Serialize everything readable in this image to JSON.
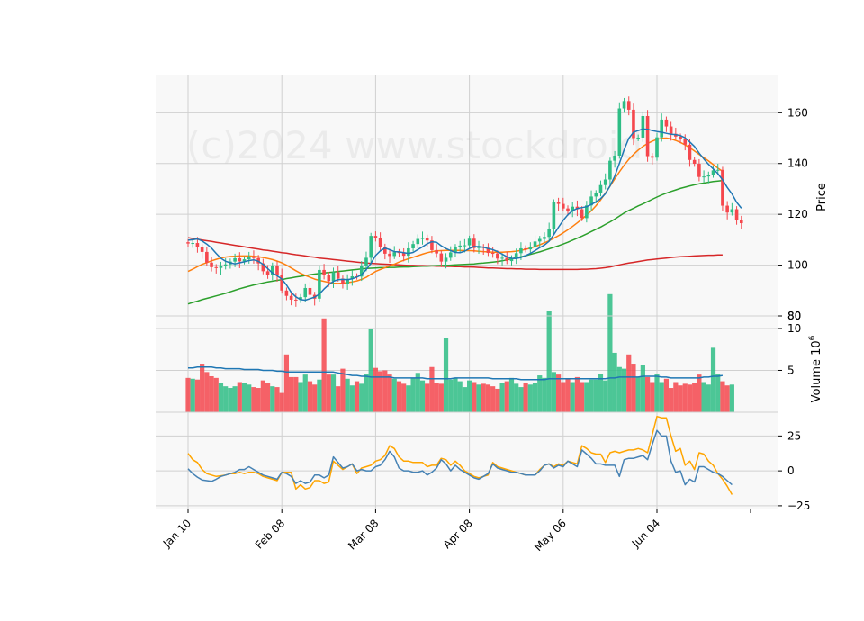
{
  "chart_data": {
    "type": "candlestick",
    "watermark": "(c)2024 www.stockdroid",
    "colors": {
      "up": "#2ebd85",
      "down": "#f5474d",
      "panel_bg": "#f8f8f8",
      "grid": "#d0d0d0",
      "ma_short": "#1f77b4",
      "ma_mid": "#ff7f0e",
      "ma_long": "#2ca02c",
      "ma_longest": "#d62728",
      "osc_fast": "#4682b4",
      "osc_slow": "#ffa500"
    },
    "x_tick_labels": [
      "Jan 10",
      "Feb 08",
      "Mar 08",
      "Apr 08",
      "May 06",
      "Jun 04"
    ],
    "x_tick_days": [
      0,
      20,
      40,
      60,
      80,
      100
    ],
    "price_panel": {
      "ylabel": "Price",
      "yticks": [
        80,
        100,
        120,
        140,
        160
      ],
      "ylim": [
        80,
        175
      ],
      "close": [
        108.5,
        108.7,
        107.1,
        105.2,
        101.0,
        99.2,
        98.9,
        99.5,
        100.3,
        101.4,
        102.7,
        101.5,
        102.3,
        103.4,
        102.8,
        100.7,
        97.6,
        96.3,
        99.8,
        96.2,
        90.0,
        87.9,
        86.4,
        86.3,
        87.4,
        91.0,
        88.3,
        86.8,
        98.1,
        96.1,
        93.7,
        97.2,
        94.7,
        92.5,
        94.6,
        95.6,
        95.5,
        99.8,
        102.9,
        111.5,
        110.5,
        107.2,
        104.5,
        103.6,
        105.1,
        104.8,
        103.7,
        106.6,
        108.3,
        110.3,
        110.8,
        109.7,
        105.9,
        104.6,
        101.4,
        102.9,
        105.0,
        107.1,
        107.7,
        107.8,
        110.4,
        106.7,
        107.1,
        106.8,
        104.8,
        104.6,
        102.6,
        102.9,
        101.6,
        102.7,
        104.7,
        106.6,
        106.2,
        107.2,
        109.3,
        110.3,
        111.1,
        114.3,
        124.7,
        124.1,
        122.3,
        121.1,
        123.0,
        122.0,
        118.5,
        123.5,
        127.0,
        128.3,
        131.5,
        133.7,
        141.1,
        143.1,
        161.7,
        164.6,
        161.2,
        150.0,
        150.2,
        158.7,
        142.9,
        142.3,
        150.3,
        157.3,
        154.6,
        151.7,
        150.6,
        149.7,
        147.4,
        141.4,
        139.9,
        134.7,
        134.9,
        135.6,
        137.3,
        137.5,
        123.4,
        120.7,
        122.0,
        117.6,
        116.5
      ],
      "open": [
        109.0,
        108.5,
        108.7,
        107.1,
        105.2,
        101.0,
        99.2,
        98.9,
        99.5,
        100.3,
        101.4,
        102.7,
        101.5,
        102.3,
        103.4,
        102.8,
        100.7,
        97.6,
        96.3,
        99.8,
        96.2,
        90.0,
        87.9,
        86.4,
        86.3,
        87.4,
        91.0,
        88.3,
        86.8,
        98.1,
        96.1,
        93.7,
        97.2,
        94.7,
        92.5,
        94.6,
        95.6,
        95.5,
        99.8,
        102.9,
        111.5,
        110.5,
        107.2,
        104.5,
        103.6,
        105.1,
        104.8,
        103.7,
        106.6,
        108.3,
        110.3,
        110.8,
        109.7,
        105.9,
        104.6,
        101.4,
        102.9,
        105.0,
        107.1,
        107.7,
        107.8,
        110.4,
        106.7,
        107.1,
        106.8,
        104.8,
        104.6,
        102.6,
        102.9,
        101.6,
        102.7,
        104.7,
        106.6,
        106.2,
        107.2,
        109.3,
        110.3,
        111.1,
        114.3,
        124.7,
        124.1,
        122.3,
        121.1,
        123.0,
        122.0,
        118.5,
        123.5,
        127.0,
        128.3,
        131.5,
        133.7,
        141.1,
        143.1,
        161.7,
        164.6,
        161.2,
        150.0,
        150.2,
        158.7,
        142.9,
        142.3,
        150.3,
        157.3,
        154.6,
        151.7,
        150.6,
        149.7,
        147.4,
        141.4,
        139.9,
        134.7,
        134.9,
        135.6,
        137.3,
        137.5,
        123.4,
        120.7,
        122.0,
        117.6
      ],
      "ma_short": [
        109.8,
        110.0,
        110.3,
        109.5,
        108.3,
        106.7,
        104.6,
        102.7,
        101.5,
        100.9,
        100.5,
        100.9,
        101.3,
        101.8,
        102.1,
        101.5,
        100.3,
        98.6,
        96.9,
        95.8,
        94.5,
        92.2,
        89.3,
        87.5,
        86.4,
        86.2,
        86.8,
        87.4,
        88.6,
        90.6,
        92.3,
        93.6,
        94.3,
        94.4,
        94.3,
        94.6,
        95.3,
        96.2,
        98.3,
        100.7,
        103.8,
        105.6,
        106.7,
        106.1,
        105.3,
        105.2,
        104.9,
        104.6,
        105.0,
        106.1,
        107.2,
        108.4,
        109.2,
        109.0,
        107.6,
        106.5,
        105.7,
        105.0,
        104.9,
        105.5,
        106.5,
        107.3,
        107.3,
        107.0,
        106.5,
        106.1,
        105.3,
        104.3,
        103.3,
        102.7,
        102.6,
        103.0,
        103.8,
        104.6,
        105.7,
        106.9,
        107.9,
        109.4,
        112.0,
        114.9,
        117.6,
        119.8,
        121.4,
        122.3,
        122.6,
        123.0,
        123.9,
        124.9,
        126.2,
        128.1,
        131.2,
        135.0,
        140.1,
        145.4,
        149.9,
        152.3,
        153.0,
        153.6,
        153.5,
        153.0,
        152.6,
        152.3,
        151.9,
        151.5,
        151.4,
        151.0,
        150.1,
        148.5,
        146.7,
        144.1,
        141.8,
        139.7,
        137.9,
        136.0,
        133.6,
        130.6,
        128.0,
        124.7,
        122.4
      ],
      "ma_mid": [
        97.5,
        98.4,
        99.4,
        100.3,
        101.0,
        101.7,
        102.3,
        102.8,
        103.2,
        103.4,
        103.5,
        103.6,
        103.6,
        103.6,
        103.5,
        103.3,
        103.0,
        102.6,
        102.2,
        101.6,
        100.9,
        100.0,
        98.9,
        97.8,
        96.8,
        95.9,
        95.2,
        94.5,
        94.0,
        93.6,
        93.2,
        92.9,
        92.8,
        92.9,
        93.1,
        93.4,
        93.8,
        94.4,
        95.2,
        96.4,
        97.5,
        98.3,
        99.0,
        99.7,
        100.4,
        101.2,
        101.9,
        102.5,
        103.1,
        103.7,
        104.3,
        104.9,
        105.3,
        105.6,
        105.7,
        105.8,
        105.8,
        105.8,
        105.8,
        105.7,
        105.7,
        105.6,
        105.4,
        105.3,
        105.2,
        105.1,
        105.1,
        105.1,
        105.2,
        105.3,
        105.5,
        105.8,
        106.2,
        106.7,
        107.3,
        108.0,
        108.8,
        109.6,
        110.6,
        111.6,
        112.7,
        113.9,
        115.2,
        116.6,
        118.1,
        119.7,
        121.4,
        123.4,
        125.7,
        128.3,
        131.1,
        133.9,
        136.7,
        139.3,
        141.6,
        143.6,
        145.3,
        146.7,
        147.9,
        148.8,
        149.5,
        149.9,
        150.0,
        149.7,
        149.1,
        148.3,
        147.3,
        146.2,
        144.9,
        143.6,
        142.3,
        141.0,
        139.6,
        138.2,
        136.9
      ],
      "ma_long": [
        84.7,
        85.3,
        85.8,
        86.4,
        86.9,
        87.4,
        87.9,
        88.4,
        88.9,
        89.5,
        90.1,
        90.7,
        91.2,
        91.7,
        92.2,
        92.6,
        93.0,
        93.4,
        93.7,
        94.0,
        94.3,
        94.7,
        95.0,
        95.3,
        95.6,
        95.9,
        96.2,
        96.5,
        96.7,
        96.9,
        97.1,
        97.3,
        97.5,
        97.7,
        97.9,
        98.1,
        98.3,
        98.5,
        98.7,
        98.8,
        98.9,
        99.0,
        99.0,
        99.1,
        99.1,
        99.2,
        99.3,
        99.3,
        99.4,
        99.5,
        99.6,
        99.6,
        99.7,
        99.8,
        99.9,
        99.9,
        100.0,
        100.1,
        100.2,
        100.3,
        100.4,
        100.5,
        100.7,
        100.8,
        101.0,
        101.2,
        101.4,
        101.7,
        102.1,
        102.5,
        102.9,
        103.3,
        103.7,
        104.2,
        104.7,
        105.2,
        105.8,
        106.4,
        107.0,
        107.6,
        108.3,
        109.0,
        109.8,
        110.6,
        111.4,
        112.3,
        113.2,
        114.1,
        115.0,
        116.0,
        117.0,
        118.1,
        119.3,
        120.5,
        121.5,
        122.4,
        123.3,
        124.1,
        125.0,
        125.9,
        126.8,
        127.6,
        128.3,
        129.0,
        129.6,
        130.2,
        130.7,
        131.2,
        131.6,
        132.0,
        132.3,
        132.6,
        132.9,
        133.1,
        133.3
      ],
      "ma_longest": [
        110.8,
        110.5,
        110.2,
        109.9,
        109.6,
        109.3,
        109.0,
        108.7,
        108.4,
        108.1,
        107.8,
        107.5,
        107.2,
        106.9,
        106.6,
        106.3,
        106.0,
        105.8,
        105.5,
        105.2,
        104.9,
        104.7,
        104.4,
        104.1,
        103.9,
        103.6,
        103.3,
        103.1,
        102.8,
        102.6,
        102.4,
        102.2,
        102.0,
        101.8,
        101.6,
        101.4,
        101.2,
        101.0,
        100.8,
        100.7,
        100.6,
        100.5,
        100.4,
        100.3,
        100.2,
        100.1,
        100.0,
        99.9,
        99.9,
        99.8,
        99.8,
        99.7,
        99.7,
        99.6,
        99.6,
        99.5,
        99.5,
        99.4,
        99.4,
        99.3,
        99.3,
        99.2,
        99.1,
        99.0,
        98.9,
        98.9,
        98.8,
        98.7,
        98.6,
        98.6,
        98.5,
        98.5,
        98.4,
        98.4,
        98.4,
        98.3,
        98.3,
        98.3,
        98.3,
        98.3,
        98.3,
        98.3,
        98.3,
        98.3,
        98.4,
        98.4,
        98.5,
        98.6,
        98.8,
        99.0,
        99.3,
        99.7,
        100.1,
        100.5,
        100.8,
        101.1,
        101.4,
        101.7,
        102.0,
        102.2,
        102.4,
        102.6,
        102.8,
        103.0,
        103.2,
        103.3,
        103.4,
        103.5,
        103.6,
        103.7,
        103.8,
        103.9,
        103.9,
        104.0,
        104.0
      ]
    },
    "volume_panel": {
      "ylabel": "Volume  10^6",
      "yticks": [
        5,
        10
      ],
      "ylim": [
        0,
        11.5
      ],
      "volume": [
        4.1,
        4.0,
        3.9,
        5.8,
        4.8,
        4.3,
        4.1,
        3.5,
        3.1,
        2.9,
        3.1,
        3.6,
        3.5,
        3.3,
        3.0,
        2.9,
        3.8,
        3.5,
        3.1,
        3.0,
        2.3,
        6.9,
        4.2,
        4.2,
        3.6,
        4.5,
        3.7,
        3.3,
        3.9,
        11.2,
        4.5,
        4.5,
        3.1,
        5.2,
        4.0,
        3.2,
        3.7,
        3.4,
        4.6,
        10.0,
        5.3,
        4.9,
        5.0,
        4.5,
        4.0,
        3.7,
        3.4,
        3.2,
        4.1,
        4.7,
        3.8,
        3.4,
        5.4,
        3.5,
        3.4,
        8.9,
        3.9,
        4.1,
        3.7,
        3.0,
        3.8,
        3.6,
        3.3,
        3.4,
        3.3,
        3.1,
        2.8,
        3.5,
        3.7,
        4.1,
        3.4,
        3.0,
        3.5,
        3.3,
        3.5,
        4.4,
        4.1,
        12.1,
        4.8,
        4.5,
        3.6,
        4.0,
        3.6,
        4.2,
        3.6,
        3.6,
        3.9,
        3.9,
        4.6,
        3.8,
        14.1,
        7.1,
        5.4,
        5.2,
        6.9,
        5.8,
        4.2,
        5.6,
        4.2,
        3.6,
        4.6,
        3.6,
        4.0,
        2.9,
        3.6,
        3.2,
        3.4,
        3.3,
        3.5,
        4.5,
        3.6,
        3.3,
        7.7,
        4.6,
        3.7,
        3.2,
        3.3
      ],
      "ma": [
        5.3,
        5.3,
        5.4,
        5.4,
        5.4,
        5.4,
        5.3,
        5.3,
        5.2,
        5.2,
        5.2,
        5.2,
        5.1,
        5.1,
        5.1,
        5.1,
        5.0,
        5.0,
        5.0,
        4.9,
        4.9,
        4.8,
        4.8,
        4.8,
        4.8,
        4.8,
        4.8,
        4.8,
        4.8,
        4.8,
        4.8,
        4.8,
        4.7,
        4.6,
        4.5,
        4.4,
        4.4,
        4.3,
        4.3,
        4.2,
        4.2,
        4.2,
        4.2,
        4.2,
        4.1,
        4.1,
        4.1,
        4.1,
        4.1,
        4.1,
        4.1,
        4.0,
        4.0,
        4.0,
        4.0,
        4.0,
        4.0,
        4.1,
        4.1,
        4.1,
        4.1,
        4.1,
        4.1,
        4.1,
        4.1,
        4.0,
        4.0,
        4.0,
        4.0,
        4.0,
        4.0,
        3.9,
        3.9,
        3.9,
        3.9,
        3.9,
        3.9,
        4.0,
        4.0,
        4.0,
        4.0,
        4.0,
        4.0,
        4.0,
        4.0,
        4.0,
        4.0,
        4.0,
        4.0,
        4.0,
        4.1,
        4.1,
        4.2,
        4.2,
        4.2,
        4.2,
        4.2,
        4.3,
        4.3,
        4.3,
        4.3,
        4.2,
        4.2,
        4.1,
        4.1,
        4.1,
        4.1,
        4.1,
        4.1,
        4.1,
        4.2,
        4.2,
        4.3,
        4.3,
        4.4
      ]
    },
    "osc_panel": {
      "yticks": [
        -25,
        0,
        25
      ],
      "ylim": [
        -27,
        42
      ],
      "fast": [
        1.5,
        -2.0,
        -4.5,
        -6.5,
        -7.0,
        -7.5,
        -6.0,
        -4.0,
        -3.0,
        -2.0,
        -1.0,
        1.0,
        1.0,
        3.0,
        1.0,
        -1.0,
        -3.0,
        -4.0,
        -5.0,
        -6.0,
        -1.0,
        -2.0,
        -4.0,
        -9.0,
        -7.0,
        -9.0,
        -8.0,
        -3.0,
        -3.0,
        -5.0,
        -3.0,
        10.0,
        6.0,
        2.0,
        3.0,
        5.0,
        0.0,
        1.0,
        0.0,
        0.0,
        3.0,
        4.0,
        8.0,
        14.0,
        10.0,
        2.0,
        0.0,
        0.0,
        -1.0,
        -1.0,
        0.0,
        -3.0,
        -1.0,
        2.0,
        8.0,
        5.0,
        0.0,
        4.0,
        1.0,
        -1.0,
        -3.0,
        -5.0,
        -6.0,
        -4.0,
        -2.0,
        5.0,
        2.0,
        1.0,
        0.0,
        -1.0,
        -1.0,
        -2.0,
        -3.0,
        -3.0,
        -3.0,
        0.0,
        4.0,
        5.0,
        2.0,
        4.0,
        3.0,
        7.0,
        5.0,
        3.0,
        15.0,
        12.0,
        9.0,
        5.0,
        5.0,
        4.0,
        4.0,
        4.0,
        -4.0,
        8.0,
        9.0,
        9.0,
        10.0,
        11.0,
        8.0,
        19.0,
        29.0,
        25.0,
        25.0,
        7.0,
        -1.0,
        0.0,
        -10.0,
        -6.0,
        -8.0,
        3.0,
        3.0,
        1.0,
        -1.0,
        -2.0,
        -4.0,
        -7.0,
        -10.0
      ],
      "slow": [
        12.5,
        8.0,
        6.0,
        1.0,
        -2.0,
        -3.0,
        -4.0,
        -3.5,
        -3.0,
        -2.0,
        -2.0,
        -1.0,
        -2.0,
        -1.0,
        -1.0,
        -2.0,
        -4.0,
        -5.0,
        -6.0,
        -7.0,
        -1.0,
        -1.0,
        -1.0,
        -13.0,
        -10.0,
        -13.0,
        -12.0,
        -7.0,
        -7.0,
        -9.0,
        -8.0,
        7.0,
        4.0,
        1.0,
        3.0,
        5.0,
        -2.0,
        2.0,
        3.0,
        4.0,
        7.0,
        8.0,
        11.0,
        18.0,
        16.0,
        10.0,
        7.0,
        7.0,
        6.0,
        6.0,
        6.0,
        3.0,
        4.0,
        4.0,
        9.0,
        8.0,
        4.0,
        7.0,
        4.0,
        0.0,
        -2.0,
        -4.0,
        -5.0,
        -4.0,
        -3.0,
        6.0,
        3.0,
        2.0,
        1.0,
        0.0,
        -1.0,
        -2.0,
        -3.0,
        -3.0,
        -3.0,
        1.0,
        4.0,
        5.0,
        3.0,
        5.0,
        4.0,
        7.0,
        6.0,
        5.0,
        18.0,
        16.0,
        13.0,
        12.0,
        12.0,
        6.0,
        13.0,
        14.0,
        13.0,
        14.0,
        15.0,
        15.0,
        16.0,
        15.0,
        13.0,
        26.0,
        39.0,
        38.0,
        38.0,
        25.0,
        14.0,
        16.0,
        4.0,
        7.0,
        1.0,
        13.0,
        12.0,
        7.0,
        4.0,
        -2.0,
        -6.0,
        -11.0,
        -17.0
      ]
    }
  }
}
